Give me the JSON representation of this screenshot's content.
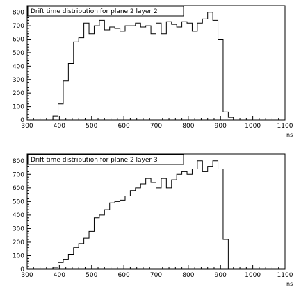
{
  "chart_data": [
    {
      "type": "histogram",
      "title": "Drift time distribution for plane 2 layer 2",
      "xlabel": "ns",
      "ylabel": "",
      "xlim": [
        300,
        1100
      ],
      "ylim": [
        0,
        850
      ],
      "bin_width": 16,
      "bin_start": 380,
      "x_ticks": [
        300,
        400,
        500,
        600,
        700,
        800,
        900,
        1000,
        1100
      ],
      "x_tick_labels": [
        "300",
        "400",
        "500",
        "600",
        "700",
        "800",
        "900",
        "1000",
        "1100"
      ],
      "y_ticks": [
        0,
        100,
        200,
        300,
        400,
        500,
        600,
        700,
        800
      ],
      "y_tick_labels": [
        "0",
        "100",
        "200",
        "300",
        "400",
        "500",
        "600",
        "700",
        "800"
      ],
      "values": [
        30,
        120,
        290,
        420,
        580,
        610,
        720,
        640,
        700,
        740,
        670,
        690,
        680,
        660,
        700,
        700,
        720,
        690,
        700,
        640,
        720,
        640,
        730,
        710,
        690,
        730,
        720,
        660,
        720,
        750,
        800,
        740,
        600,
        60,
        20
      ]
    },
    {
      "type": "histogram",
      "title": "Drift time distribution for plane 2 layer 3",
      "xlabel": "ns",
      "ylabel": "",
      "xlim": [
        300,
        1100
      ],
      "ylim": [
        0,
        850
      ],
      "bin_width": 16,
      "bin_start": 380,
      "x_ticks": [
        300,
        400,
        500,
        600,
        700,
        800,
        900,
        1000,
        1100
      ],
      "x_tick_labels": [
        "300",
        "400",
        "500",
        "600",
        "700",
        "800",
        "900",
        "1000",
        "1100"
      ],
      "y_ticks": [
        0,
        100,
        200,
        300,
        400,
        500,
        600,
        700,
        800
      ],
      "y_tick_labels": [
        "0",
        "100",
        "200",
        "300",
        "400",
        "500",
        "600",
        "700",
        "800"
      ],
      "values": [
        10,
        50,
        70,
        110,
        160,
        190,
        230,
        280,
        380,
        400,
        440,
        490,
        500,
        510,
        540,
        580,
        600,
        630,
        670,
        640,
        600,
        670,
        600,
        660,
        700,
        720,
        700,
        740,
        800,
        720,
        760,
        800,
        740,
        220,
        0
      ]
    }
  ]
}
